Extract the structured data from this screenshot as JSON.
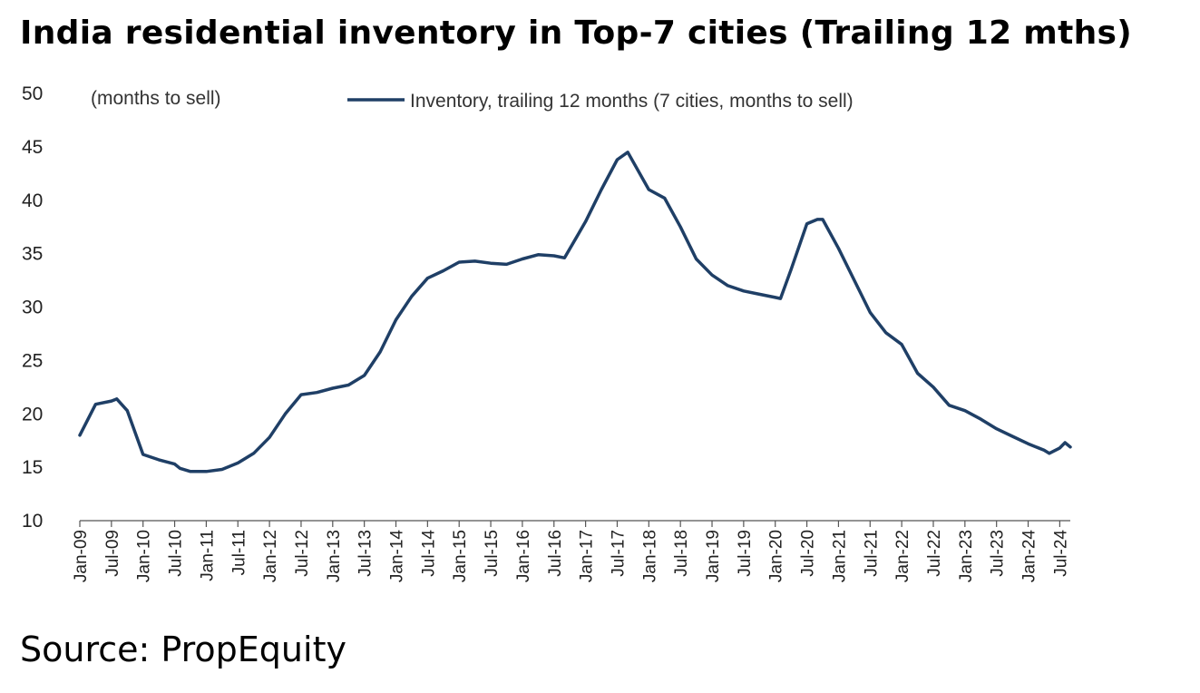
{
  "header": {
    "title": "India residential inventory in Top-7 cities (Trailing 12 mths)"
  },
  "footer": {
    "source": "Source: PropEquity"
  },
  "chart_data": {
    "type": "line",
    "title": "India residential inventory in Top-7 cities (Trailing 12 mths)",
    "ylabel": "(months to sell)",
    "xlabel": "",
    "ylim": [
      10,
      50
    ],
    "yticks": [
      10,
      15,
      20,
      25,
      30,
      35,
      40,
      45,
      50
    ],
    "x_tick_labels": [
      "Jan-09",
      "Jul-09",
      "Jan-10",
      "Jul-10",
      "Jan-11",
      "Jul-11",
      "Jan-12",
      "Jul-12",
      "Jan-13",
      "Jul-13",
      "Jan-14",
      "Jul-14",
      "Jan-15",
      "Jul-15",
      "Jan-16",
      "Jul-16",
      "Jan-17",
      "Jul-17",
      "Jan-18",
      "Jul-18",
      "Jan-19",
      "Jul-19",
      "Jan-20",
      "Jul-20",
      "Jan-21",
      "Jul-21",
      "Jan-22",
      "Jul-22",
      "Jan-23",
      "Jul-23",
      "Jan-24",
      "Jul-24"
    ],
    "grid": false,
    "legend": "top-center",
    "color": "#1f3f66",
    "series": [
      {
        "name": "Inventory, trailing 12 months (7 cities, months to sell)",
        "x": [
          "Jan-09",
          "Apr-09",
          "Jul-09",
          "Aug-09",
          "Oct-09",
          "Jan-10",
          "Apr-10",
          "Jul-10",
          "Aug-10",
          "Oct-10",
          "Jan-11",
          "Apr-11",
          "Jul-11",
          "Oct-11",
          "Jan-12",
          "Apr-12",
          "Jul-12",
          "Oct-12",
          "Jan-13",
          "Apr-13",
          "Jul-13",
          "Oct-13",
          "Jan-14",
          "Apr-14",
          "Jul-14",
          "Oct-14",
          "Jan-15",
          "Apr-15",
          "Jul-15",
          "Oct-15",
          "Jan-16",
          "Apr-16",
          "Jul-16",
          "Sep-16",
          "Jan-17",
          "Apr-17",
          "Jul-17",
          "Sep-17",
          "Jan-18",
          "Apr-18",
          "Jul-18",
          "Oct-18",
          "Jan-19",
          "Apr-19",
          "Jul-19",
          "Oct-19",
          "Jan-20",
          "Feb-20",
          "Apr-20",
          "Jul-20",
          "Sep-20",
          "Oct-20",
          "Jan-21",
          "Apr-21",
          "Jul-21",
          "Oct-21",
          "Jan-22",
          "Apr-22",
          "Jul-22",
          "Oct-22",
          "Jan-23",
          "Apr-23",
          "Jul-23",
          "Oct-23",
          "Jan-24",
          "Apr-24",
          "May-24",
          "Jul-24",
          "Aug-24",
          "Sep-24"
        ],
        "values": [
          18.0,
          20.9,
          21.2,
          21.4,
          20.3,
          16.2,
          15.7,
          15.3,
          14.9,
          14.6,
          14.6,
          14.8,
          15.4,
          16.3,
          17.8,
          20.0,
          21.8,
          22.0,
          22.4,
          22.7,
          23.6,
          25.8,
          28.8,
          31.0,
          32.7,
          33.4,
          34.2,
          34.3,
          34.1,
          34.0,
          34.5,
          34.9,
          34.8,
          34.6,
          38.0,
          41.0,
          43.8,
          44.5,
          41.0,
          40.2,
          37.5,
          34.5,
          33.0,
          32.0,
          31.5,
          31.2,
          30.9,
          30.8,
          33.5,
          37.8,
          38.2,
          38.2,
          35.5,
          32.5,
          29.5,
          27.6,
          26.5,
          23.8,
          22.5,
          20.8,
          20.3,
          19.5,
          18.6,
          17.9,
          17.2,
          16.6,
          16.3,
          16.8,
          17.3,
          16.9
        ]
      }
    ]
  }
}
